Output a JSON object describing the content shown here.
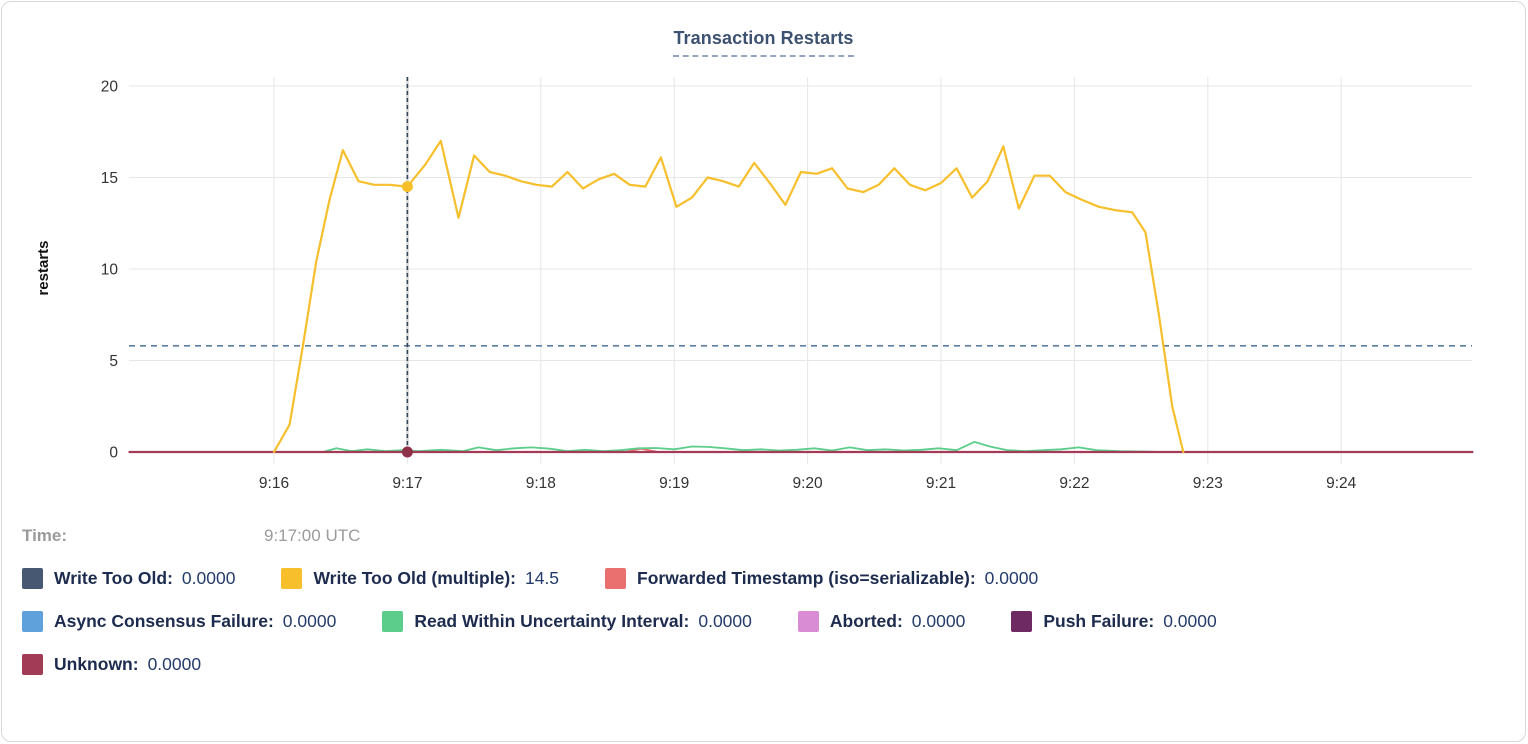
{
  "tooltip": {
    "time_label": "Time:",
    "time_value": "9:17:00 UTC"
  },
  "palette": {
    "Write Too Old": "#475872",
    "Write Too Old (multiple)": "#F6BF2B",
    "Forwarded Timestamp (iso=serializable)": "#EA7070",
    "Async Consensus Failure": "#5FA1DA",
    "Read Within Uncertainty Interval": "#5CCD8A",
    "Aborted": "#D98CD3",
    "Push Failure": "#6E2A62",
    "Unknown": "#A23B55"
  },
  "legend": {
    "rows": [
      [
        {
          "name": "Write Too Old",
          "value": "0.0000"
        },
        {
          "name": "Write Too Old (multiple)",
          "value": "14.5"
        },
        {
          "name": "Forwarded Timestamp (iso=serializable)",
          "value": "0.0000"
        }
      ],
      [
        {
          "name": "Async Consensus Failure",
          "value": "0.0000"
        },
        {
          "name": "Read Within Uncertainty Interval",
          "value": "0.0000"
        },
        {
          "name": "Aborted",
          "value": "0.0000"
        },
        {
          "name": "Push Failure",
          "value": "0.0000"
        }
      ],
      [
        {
          "name": "Unknown",
          "value": "0.0000"
        }
      ]
    ]
  },
  "chart_data": {
    "type": "line",
    "title": "Transaction Restarts",
    "ylabel": "restarts",
    "ylim": [
      0,
      20
    ],
    "yticks": [
      0,
      5,
      10,
      15,
      20
    ],
    "xticks": [
      "9:16",
      "9:17",
      "9:18",
      "9:19",
      "9:20",
      "9:21",
      "9:22",
      "9:23",
      "9:24"
    ],
    "x_window_utc": "approx 9:15 to 9:25 UTC, 1-minute ticks",
    "grid": true,
    "threshold_dashed_value": 5.8,
    "hover": {
      "time": "9:17:00 UTC",
      "t_sec": 60,
      "highlighted": [
        {
          "series": "Write Too Old (multiple)",
          "value": 14.5
        },
        {
          "series": "Unknown",
          "value": 0
        }
      ]
    },
    "series": [
      {
        "name": "Write Too Old",
        "points": [
          [
            -65,
            0
          ],
          [
            539,
            0
          ]
        ]
      },
      {
        "name": "Async Consensus Failure",
        "points": [
          [
            -65,
            0
          ],
          [
            539,
            0
          ]
        ]
      },
      {
        "name": "Aborted",
        "points": [
          [
            -65,
            0
          ],
          [
            539,
            0
          ]
        ]
      },
      {
        "name": "Push Failure",
        "points": [
          [
            -65,
            0
          ],
          [
            539,
            0
          ]
        ]
      },
      {
        "name": "Forwarded Timestamp (iso=serializable)",
        "points": [
          [
            -65,
            0
          ],
          [
            158,
            0
          ],
          [
            165,
            0.18
          ],
          [
            173,
            0
          ],
          [
            539,
            0
          ]
        ]
      },
      {
        "name": "Read Within Uncertainty Interval",
        "points": [
          [
            22,
            0
          ],
          [
            28,
            0.2
          ],
          [
            35,
            0.05
          ],
          [
            42,
            0.15
          ],
          [
            50,
            0.05
          ],
          [
            58,
            0.1
          ],
          [
            65,
            0.05
          ],
          [
            75,
            0.12
          ],
          [
            85,
            0.05
          ],
          [
            92,
            0.25
          ],
          [
            100,
            0.1
          ],
          [
            108,
            0.2
          ],
          [
            116,
            0.25
          ],
          [
            124,
            0.18
          ],
          [
            132,
            0.05
          ],
          [
            140,
            0.12
          ],
          [
            148,
            0.05
          ],
          [
            156,
            0.1
          ],
          [
            164,
            0.2
          ],
          [
            172,
            0.22
          ],
          [
            180,
            0.15
          ],
          [
            188,
            0.3
          ],
          [
            195,
            0.28
          ],
          [
            203,
            0.2
          ],
          [
            211,
            0.1
          ],
          [
            219,
            0.15
          ],
          [
            227,
            0.08
          ],
          [
            235,
            0.12
          ],
          [
            243,
            0.2
          ],
          [
            251,
            0.08
          ],
          [
            259,
            0.25
          ],
          [
            267,
            0.1
          ],
          [
            275,
            0.15
          ],
          [
            283,
            0.08
          ],
          [
            291,
            0.12
          ],
          [
            299,
            0.2
          ],
          [
            307,
            0.1
          ],
          [
            315,
            0.55
          ],
          [
            322,
            0.3
          ],
          [
            330,
            0.1
          ],
          [
            338,
            0.05
          ],
          [
            346,
            0.1
          ],
          [
            354,
            0.15
          ],
          [
            362,
            0.25
          ],
          [
            370,
            0.1
          ],
          [
            380,
            0.05
          ],
          [
            390,
            0.03
          ],
          [
            400,
            0
          ]
        ]
      },
      {
        "name": "Unknown",
        "points": [
          [
            -65,
            0
          ],
          [
            539,
            0
          ]
        ]
      },
      {
        "name": "Write Too Old (multiple)",
        "points": [
          [
            0,
            0
          ],
          [
            7,
            1.5
          ],
          [
            13,
            5.8
          ],
          [
            19,
            10.4
          ],
          [
            25,
            13.8
          ],
          [
            31,
            16.5
          ],
          [
            38,
            14.8
          ],
          [
            45,
            14.6
          ],
          [
            52,
            14.6
          ],
          [
            60,
            14.5
          ],
          [
            68,
            15.7
          ],
          [
            75,
            17.0
          ],
          [
            83,
            12.8
          ],
          [
            90,
            16.2
          ],
          [
            97,
            15.3
          ],
          [
            104,
            15.1
          ],
          [
            111,
            14.8
          ],
          [
            118,
            14.6
          ],
          [
            125,
            14.5
          ],
          [
            132,
            15.3
          ],
          [
            139,
            14.4
          ],
          [
            146,
            14.9
          ],
          [
            153,
            15.2
          ],
          [
            160,
            14.6
          ],
          [
            167,
            14.5
          ],
          [
            174,
            16.1
          ],
          [
            181,
            13.4
          ],
          [
            188,
            13.9
          ],
          [
            195,
            15.0
          ],
          [
            202,
            14.8
          ],
          [
            209,
            14.5
          ],
          [
            216,
            15.8
          ],
          [
            223,
            14.7
          ],
          [
            230,
            13.5
          ],
          [
            237,
            15.3
          ],
          [
            244,
            15.2
          ],
          [
            251,
            15.5
          ],
          [
            258,
            14.4
          ],
          [
            265,
            14.2
          ],
          [
            272,
            14.6
          ],
          [
            279,
            15.5
          ],
          [
            286,
            14.6
          ],
          [
            293,
            14.3
          ],
          [
            300,
            14.7
          ],
          [
            307,
            15.5
          ],
          [
            314,
            13.9
          ],
          [
            321,
            14.8
          ],
          [
            328,
            16.7
          ],
          [
            335,
            13.3
          ],
          [
            342,
            15.1
          ],
          [
            349,
            15.1
          ],
          [
            356,
            14.2
          ],
          [
            363,
            13.8
          ],
          [
            371,
            13.4
          ],
          [
            379,
            13.2
          ],
          [
            386,
            13.1
          ],
          [
            392,
            12.0
          ],
          [
            398,
            7.5
          ],
          [
            404,
            2.5
          ],
          [
            409,
            0
          ]
        ]
      }
    ]
  }
}
